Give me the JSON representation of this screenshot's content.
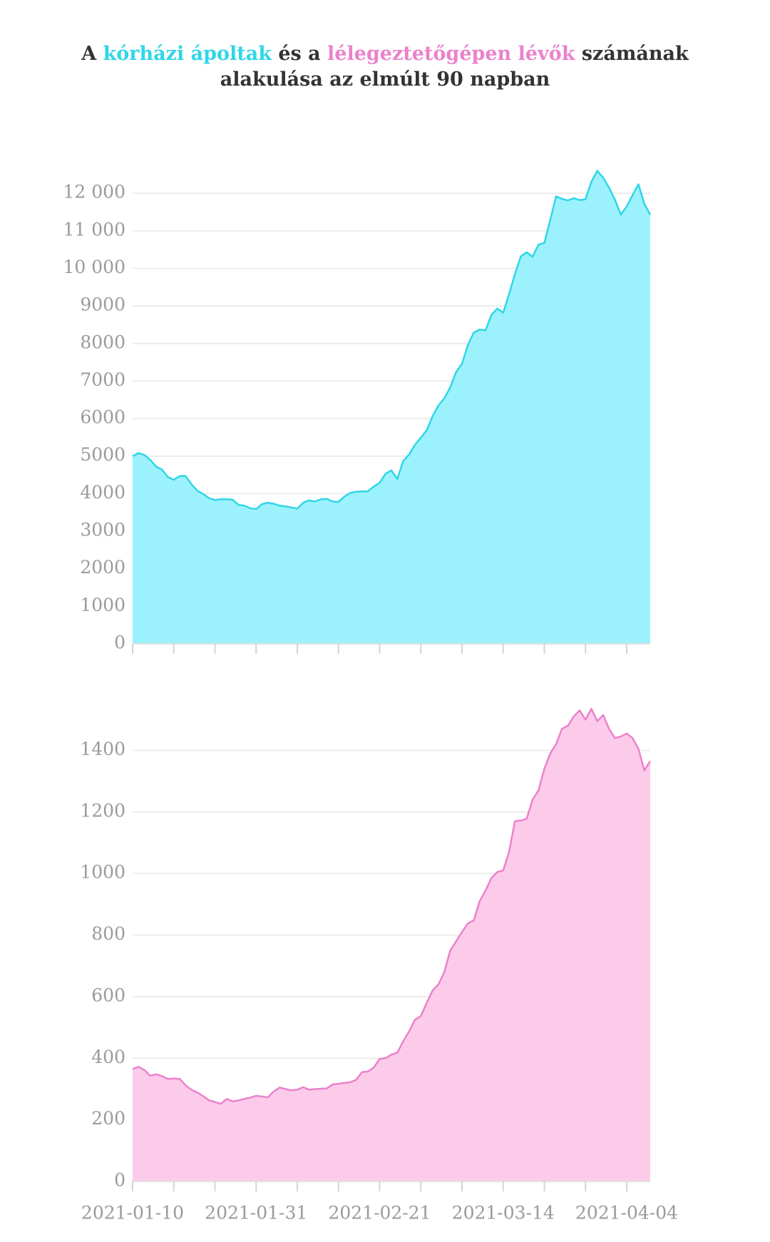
{
  "title": [
    "A ",
    "kórházi ápoltak",
    " és a ",
    "lélegeztetőgépen lévők",
    " számának",
    "alakulása az elmúlt 90 napban"
  ],
  "chart_data": [
    {
      "type": "area",
      "name": "kórházi ápoltak",
      "color": "#2fd6e8",
      "fill": "#9cf2fc",
      "x": [
        "2021-01-10",
        "2021-01-11",
        "2021-01-12",
        "2021-01-13",
        "2021-01-14",
        "2021-01-15",
        "2021-01-16",
        "2021-01-17",
        "2021-01-18",
        "2021-01-19",
        "2021-01-20",
        "2021-01-21",
        "2021-01-22",
        "2021-01-23",
        "2021-01-24",
        "2021-01-25",
        "2021-01-26",
        "2021-01-27",
        "2021-01-28",
        "2021-01-29",
        "2021-01-30",
        "2021-01-31",
        "2021-02-01",
        "2021-02-02",
        "2021-02-03",
        "2021-02-04",
        "2021-02-05",
        "2021-02-06",
        "2021-02-07",
        "2021-02-08",
        "2021-02-09",
        "2021-02-10",
        "2021-02-11",
        "2021-02-12",
        "2021-02-13",
        "2021-02-14",
        "2021-02-15",
        "2021-02-16",
        "2021-02-17",
        "2021-02-18",
        "2021-02-19",
        "2021-02-20",
        "2021-02-21",
        "2021-02-22",
        "2021-02-23",
        "2021-02-24",
        "2021-02-25",
        "2021-02-26",
        "2021-02-27",
        "2021-02-28",
        "2021-03-01",
        "2021-03-02",
        "2021-03-03",
        "2021-03-04",
        "2021-03-05",
        "2021-03-06",
        "2021-03-07",
        "2021-03-08",
        "2021-03-09",
        "2021-03-10",
        "2021-03-11",
        "2021-03-12",
        "2021-03-13",
        "2021-03-14",
        "2021-03-15",
        "2021-03-16",
        "2021-03-17",
        "2021-03-18",
        "2021-03-19",
        "2021-03-20",
        "2021-03-21",
        "2021-03-22",
        "2021-03-23",
        "2021-03-24",
        "2021-03-25",
        "2021-03-26",
        "2021-03-27",
        "2021-03-28",
        "2021-03-29",
        "2021-03-30",
        "2021-03-31",
        "2021-04-01",
        "2021-04-02",
        "2021-04-03",
        "2021-04-04",
        "2021-04-05",
        "2021-04-06",
        "2021-04-07",
        "2021-04-08"
      ],
      "values": [
        5000,
        5080,
        5030,
        4900,
        4720,
        4640,
        4440,
        4370,
        4470,
        4470,
        4250,
        4080,
        3990,
        3880,
        3830,
        3850,
        3850,
        3840,
        3700,
        3680,
        3610,
        3590,
        3720,
        3760,
        3730,
        3680,
        3660,
        3630,
        3600,
        3760,
        3820,
        3790,
        3850,
        3860,
        3790,
        3780,
        3920,
        4020,
        4050,
        4060,
        4060,
        4190,
        4290,
        4530,
        4620,
        4390,
        4870,
        5040,
        5300,
        5490,
        5690,
        6060,
        6350,
        6540,
        6830,
        7240,
        7460,
        7960,
        8290,
        8370,
        8350,
        8760,
        8930,
        8820,
        9310,
        9850,
        10320,
        10430,
        10310,
        10630,
        10680,
        11290,
        11920,
        11850,
        11810,
        11870,
        11820,
        11840,
        12310,
        12600,
        12420,
        12150,
        11830,
        11430,
        11650,
        11950,
        12240,
        11720,
        11430
      ],
      "xlim": [
        "2021-01-10",
        "2021-04-08"
      ],
      "xticks": [
        "2021-01-10",
        "2021-01-31",
        "2021-02-21",
        "2021-03-14",
        "2021-04-04"
      ],
      "xminor": [
        "2021-01-17",
        "2021-01-24",
        "2021-02-07",
        "2021-02-14",
        "2021-02-28",
        "2021-03-07",
        "2021-03-21",
        "2021-03-28"
      ],
      "show_xtick_labels": false,
      "ylim": [
        0,
        12800
      ],
      "yticks": [
        0,
        1000,
        2000,
        3000,
        4000,
        5000,
        6000,
        7000,
        8000,
        9000,
        {
          "value": 10000,
          "label": "10 000"
        },
        {
          "value": 11000,
          "label": "11 000"
        },
        {
          "value": 12000,
          "label": "12 000"
        }
      ],
      "grid": true
    },
    {
      "type": "area",
      "name": "lélegeztetőgépen lévők",
      "color": "#ea82cb",
      "fill": "#fdcbea",
      "x": [
        "2021-01-10",
        "2021-01-11",
        "2021-01-12",
        "2021-01-13",
        "2021-01-14",
        "2021-01-15",
        "2021-01-16",
        "2021-01-17",
        "2021-01-18",
        "2021-01-19",
        "2021-01-20",
        "2021-01-21",
        "2021-01-22",
        "2021-01-23",
        "2021-01-24",
        "2021-01-25",
        "2021-01-26",
        "2021-01-27",
        "2021-01-28",
        "2021-01-29",
        "2021-01-30",
        "2021-01-31",
        "2021-02-01",
        "2021-02-02",
        "2021-02-03",
        "2021-02-04",
        "2021-02-05",
        "2021-02-06",
        "2021-02-07",
        "2021-02-08",
        "2021-02-09",
        "2021-02-10",
        "2021-02-11",
        "2021-02-12",
        "2021-02-13",
        "2021-02-14",
        "2021-02-15",
        "2021-02-16",
        "2021-02-17",
        "2021-02-18",
        "2021-02-19",
        "2021-02-20",
        "2021-02-21",
        "2021-02-22",
        "2021-02-23",
        "2021-02-24",
        "2021-02-25",
        "2021-02-26",
        "2021-02-27",
        "2021-02-28",
        "2021-03-01",
        "2021-03-02",
        "2021-03-03",
        "2021-03-04",
        "2021-03-05",
        "2021-03-06",
        "2021-03-07",
        "2021-03-08",
        "2021-03-09",
        "2021-03-10",
        "2021-03-11",
        "2021-03-12",
        "2021-03-13",
        "2021-03-14",
        "2021-03-15",
        "2021-03-16",
        "2021-03-17",
        "2021-03-18",
        "2021-03-19",
        "2021-03-20",
        "2021-03-21",
        "2021-03-22",
        "2021-03-23",
        "2021-03-24",
        "2021-03-25",
        "2021-03-26",
        "2021-03-27",
        "2021-03-28",
        "2021-03-29",
        "2021-03-30",
        "2021-03-31",
        "2021-04-01",
        "2021-04-02",
        "2021-04-03",
        "2021-04-04",
        "2021-04-05",
        "2021-04-06",
        "2021-04-07",
        "2021-04-08"
      ],
      "values": [
        365,
        372,
        362,
        343,
        348,
        342,
        333,
        334,
        333,
        312,
        298,
        289,
        277,
        263,
        258,
        252,
        268,
        260,
        263,
        268,
        272,
        278,
        276,
        273,
        292,
        305,
        300,
        296,
        298,
        306,
        298,
        300,
        301,
        302,
        315,
        317,
        320,
        322,
        330,
        355,
        357,
        370,
        398,
        400,
        412,
        418,
        455,
        487,
        525,
        537,
        580,
        620,
        640,
        680,
        750,
        780,
        810,
        838,
        848,
        910,
        945,
        985,
        1005,
        1010,
        1070,
        1170,
        1172,
        1178,
        1240,
        1270,
        1340,
        1390,
        1420,
        1470,
        1480,
        1510,
        1530,
        1500,
        1535,
        1495,
        1515,
        1470,
        1440,
        1445,
        1455,
        1440,
        1405,
        1335,
        1365
      ],
      "xlim": [
        "2021-01-10",
        "2021-04-08"
      ],
      "xticks": [
        "2021-01-10",
        "2021-01-31",
        "2021-02-21",
        "2021-03-14",
        "2021-04-04"
      ],
      "xminor": [
        "2021-01-17",
        "2021-01-24",
        "2021-02-07",
        "2021-02-14",
        "2021-02-28",
        "2021-03-07",
        "2021-03-21",
        "2021-03-28"
      ],
      "show_xtick_labels": true,
      "ylim": [
        0,
        1540
      ],
      "yticks": [
        0,
        200,
        400,
        600,
        800,
        1000,
        1200,
        1400
      ],
      "grid": true
    }
  ]
}
